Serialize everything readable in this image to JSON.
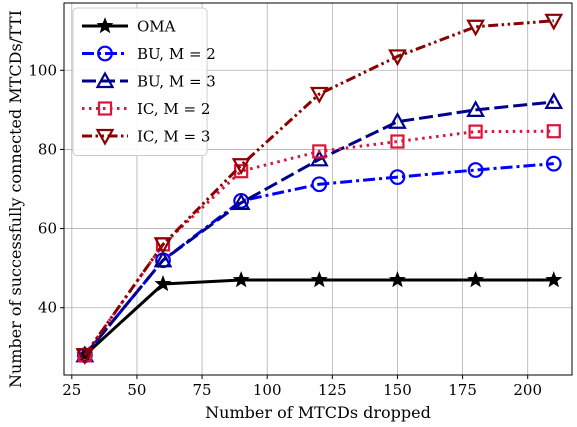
{
  "chart_data": {
    "type": "line",
    "xlabel": "Number of MTCDs dropped",
    "ylabel": "Number of successfully connected MTCDs/TTI",
    "xlim": [
      22,
      217
    ],
    "ylim": [
      23,
      117
    ],
    "xticks": [
      25,
      50,
      75,
      100,
      125,
      150,
      175,
      200
    ],
    "yticks": [
      40,
      60,
      80,
      100
    ],
    "grid": true,
    "legend_position": "top-left",
    "x": [
      30,
      60,
      90,
      120,
      150,
      180,
      210
    ],
    "series": [
      {
        "name": "OMA",
        "values": [
          28,
          46,
          47,
          47,
          47,
          47,
          47
        ],
        "color": "#000000",
        "dash": "solid",
        "marker": "star"
      },
      {
        "name": "BU, M = 2",
        "values": [
          28,
          52,
          67,
          71.2,
          73,
          74.8,
          76.4
        ],
        "color": "#0000ff",
        "dash": "dashdot",
        "marker": "circle"
      },
      {
        "name": "BU, M =  3",
        "values": [
          28,
          52,
          66.5,
          77.5,
          87,
          90,
          92
        ],
        "color": "#00008b",
        "dash": "dash",
        "marker": "triangle-up"
      },
      {
        "name": "IC, M = 2",
        "values": [
          28,
          56,
          74.5,
          79.5,
          82,
          84.5,
          84.6
        ],
        "color": "#dc143c",
        "dash": "dot",
        "marker": "square"
      },
      {
        "name": "IC, M = 3",
        "values": [
          28,
          56,
          76,
          94,
          103.5,
          111,
          112.5
        ],
        "color": "#8b0000",
        "dash": "dashdotdot",
        "marker": "triangle-down"
      }
    ]
  }
}
